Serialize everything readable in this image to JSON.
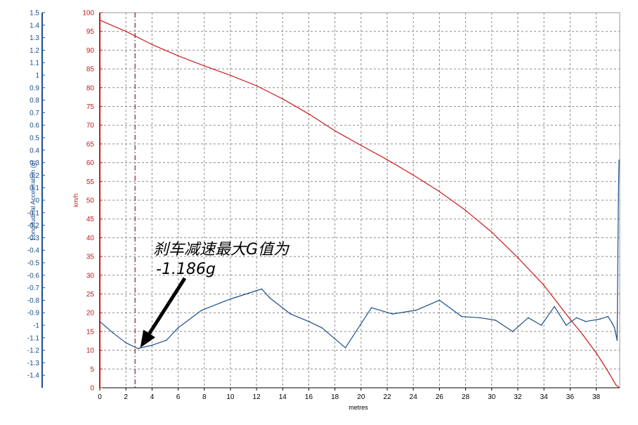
{
  "chart_data": {
    "type": "line",
    "xlabel": "metres",
    "ylabel_left": "Longitudinal Acceleration (g)",
    "ylabel_right": "km/h",
    "xlim": [
      0,
      39.8
    ],
    "ylim_left": [
      -1.5,
      1.5
    ],
    "ylim_right": [
      0,
      100
    ],
    "x_ticks": [
      0,
      2,
      4,
      6,
      8,
      10,
      12,
      14,
      16,
      18,
      20,
      22,
      24,
      26,
      28,
      30,
      32,
      34,
      36,
      38
    ],
    "left_ticks": [
      1.5,
      1.4,
      1.3,
      1.2,
      1.1,
      1,
      0.9,
      0.8,
      0.7,
      0.6,
      0.5,
      0.4,
      0.3,
      0.2,
      0.1,
      0,
      -0.1,
      -0.2,
      -0.3,
      -0.4,
      -0.5,
      -0.6,
      -0.7,
      -0.8,
      -0.9,
      -1,
      -1.1,
      -1.2,
      -1.3,
      -1.4
    ],
    "right_ticks": [
      100,
      95,
      90,
      85,
      80,
      75,
      70,
      65,
      60,
      55,
      50,
      45,
      40,
      35,
      30,
      25,
      20,
      15,
      10,
      5,
      0
    ],
    "grid": true,
    "marker_x": 2.7,
    "annotation": {
      "lines": [
        "刹车减速最大G值为",
        "-1.186g"
      ],
      "arrow_target_x": 3.1,
      "arrow_target_acc": -1.18
    },
    "series": [
      {
        "axis": "right",
        "color": "#cc1a1a",
        "x": [
          0,
          2,
          4,
          6,
          8,
          10,
          12,
          14,
          16,
          18,
          20,
          22,
          24,
          26,
          28,
          30,
          32,
          34,
          35,
          36,
          37,
          38,
          38.5,
          39,
          39.3,
          39.5,
          39.7
        ],
        "values": [
          98,
          95,
          91.5,
          88.5,
          85.8,
          83.3,
          80.5,
          77,
          73,
          68.5,
          64.6,
          60.8,
          56.7,
          52.3,
          47.3,
          41.5,
          34.7,
          27.3,
          22.8,
          18.3,
          14,
          9.3,
          6.6,
          3.8,
          2,
          0.8,
          0.2
        ]
      },
      {
        "axis": "left",
        "color": "#1a4f8a",
        "x": [
          0,
          1,
          2,
          2.9,
          4,
          5.1,
          6,
          7.8,
          10,
          12.4,
          13,
          14.6,
          16,
          17,
          18.8,
          20.8,
          22.4,
          24.2,
          26,
          27.7,
          29.1,
          30.3,
          31.6,
          32.8,
          33.8,
          34.8,
          35.7,
          36.5,
          37.2,
          38.3,
          38.9,
          39.2,
          39.4,
          39.6,
          39.7,
          39.75
        ],
        "values": [
          -0.97,
          -1.06,
          -1.14,
          -1.186,
          -1.16,
          -1.12,
          -1.02,
          -0.88,
          -0.79,
          -0.71,
          -0.78,
          -0.91,
          -0.97,
          -1.02,
          -1.18,
          -0.86,
          -0.91,
          -0.88,
          -0.8,
          -0.93,
          -0.94,
          -0.96,
          -1.05,
          -0.94,
          -1.0,
          -0.85,
          -1.0,
          -0.94,
          -0.97,
          -0.95,
          -0.93,
          -0.98,
          -1.02,
          -1.12,
          0.05,
          0.32
        ]
      }
    ]
  }
}
